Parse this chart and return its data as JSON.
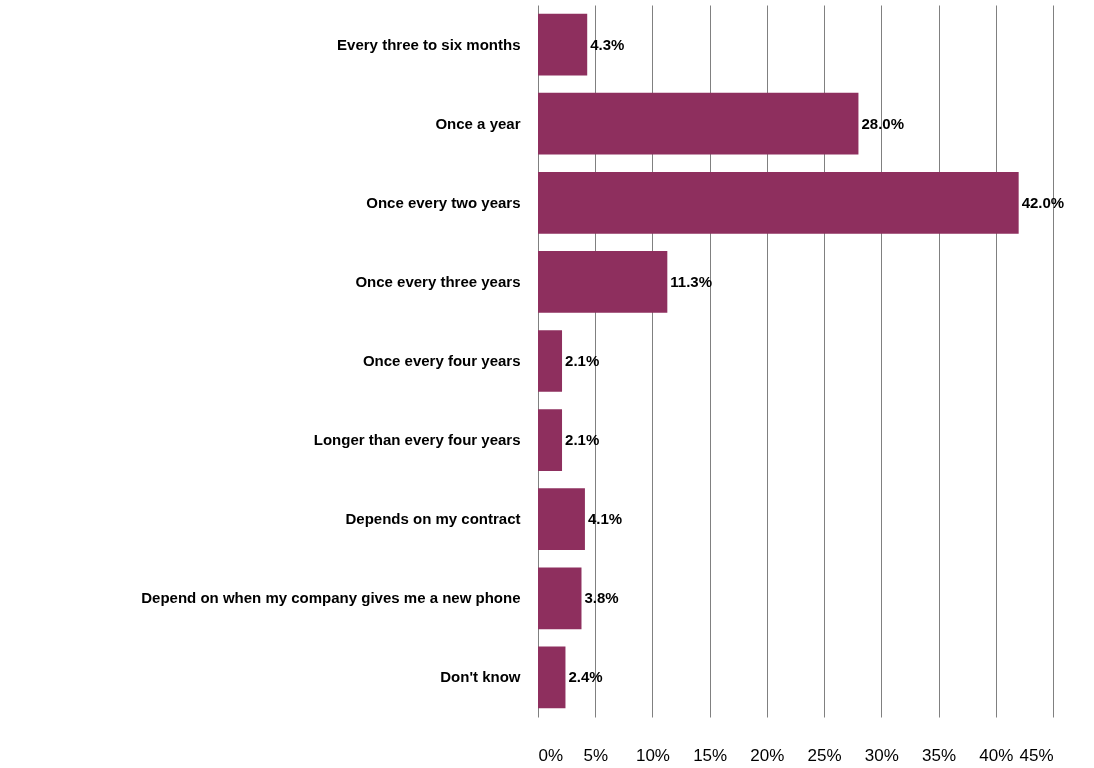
{
  "chart_data": {
    "type": "bar",
    "orientation": "horizontal",
    "categories": [
      "Every three to six months",
      "Once a year",
      "Once every two years",
      "Once every three years",
      "Once every four years",
      "Longer than every four years",
      "Depends on my contract",
      "Depend on when my company gives me a new phone",
      "Don't know"
    ],
    "values": [
      4.3,
      28.0,
      42.0,
      11.3,
      2.1,
      2.1,
      4.1,
      3.8,
      2.4
    ],
    "value_labels": [
      "4.3%",
      "28.0%",
      "42.0%",
      "11.3%",
      "2.1%",
      "2.1%",
      "4.1%",
      "3.8%",
      "2.4%"
    ],
    "color": "#8e2f5e",
    "xlim": [
      0,
      45
    ],
    "xticks": [
      {
        "value": 0,
        "label": "0%"
      },
      {
        "value": 5,
        "label": "5%"
      },
      {
        "value": 10,
        "label": "10%"
      },
      {
        "value": 15,
        "label": "15%"
      },
      {
        "value": 20,
        "label": "20%"
      },
      {
        "value": 25,
        "label": "25%"
      },
      {
        "value": 30,
        "label": "30%"
      },
      {
        "value": 35,
        "label": "35%"
      },
      {
        "value": 40,
        "label": "40%"
      },
      {
        "value": 45,
        "label": "45%"
      }
    ],
    "grid": "x"
  }
}
